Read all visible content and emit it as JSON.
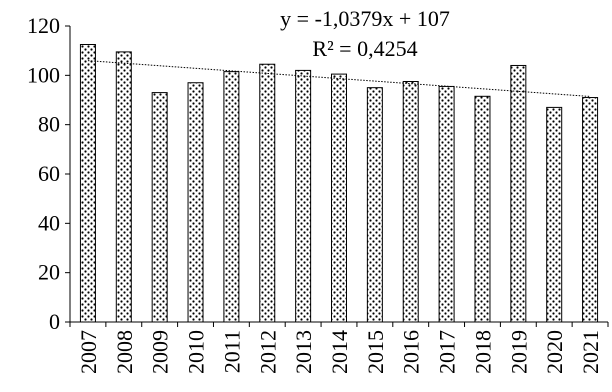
{
  "chart_data": {
    "type": "bar",
    "categories": [
      "2007",
      "2008",
      "2009",
      "2010",
      "2011",
      "2012",
      "2013",
      "2014",
      "2015",
      "2016",
      "2017",
      "2018",
      "2019",
      "2020",
      "2021"
    ],
    "values": [
      112.5,
      109.5,
      93,
      97,
      101.5,
      104.5,
      102,
      100.5,
      95,
      97.5,
      95.5,
      91.5,
      104,
      87,
      91
    ],
    "ylim": [
      0,
      120
    ],
    "yticks": [
      "0",
      "20",
      "40",
      "60",
      "80",
      "100",
      "120"
    ],
    "trendline": {
      "type": "linear",
      "slope": -1.0379,
      "intercept": 107,
      "equation": "y = -1,0379x + 107",
      "r_squared": "R² = 0,4254"
    },
    "grid": false,
    "legend": "none",
    "bar_pattern": "dotted crosshatch"
  }
}
